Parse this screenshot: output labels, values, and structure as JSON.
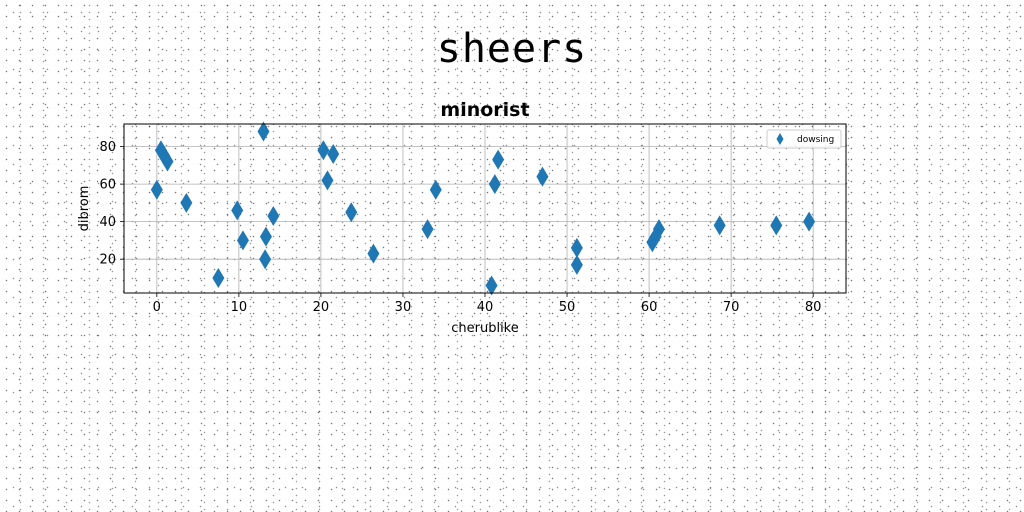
{
  "figure": {
    "suptitle": "sheers"
  },
  "chart_data": {
    "type": "scatter",
    "title": "minorist",
    "xlabel": "cherublike",
    "ylabel": "dibrom",
    "xlim": [
      -4,
      84
    ],
    "ylim": [
      2,
      92
    ],
    "xticks": [
      0,
      10,
      20,
      30,
      40,
      50,
      60,
      70,
      80
    ],
    "yticks": [
      20,
      40,
      60,
      80
    ],
    "grid": true,
    "legend_position": "top-right",
    "color": "#1f77b4",
    "marker": "thin-diamond",
    "series": [
      {
        "name": "dowsing",
        "points": [
          [
            0.0,
            57
          ],
          [
            0.5,
            78
          ],
          [
            0.9,
            75
          ],
          [
            1.3,
            72
          ],
          [
            3.6,
            50
          ],
          [
            7.5,
            10
          ],
          [
            9.8,
            46
          ],
          [
            10.5,
            30
          ],
          [
            13.0,
            88
          ],
          [
            13.2,
            20
          ],
          [
            13.3,
            32
          ],
          [
            14.2,
            43
          ],
          [
            20.3,
            78
          ],
          [
            20.8,
            62
          ],
          [
            21.5,
            76
          ],
          [
            23.7,
            45
          ],
          [
            26.4,
            23
          ],
          [
            33.0,
            36
          ],
          [
            34.0,
            57
          ],
          [
            40.8,
            6
          ],
          [
            41.2,
            60
          ],
          [
            41.6,
            73
          ],
          [
            47.0,
            64
          ],
          [
            51.2,
            26
          ],
          [
            51.2,
            17
          ],
          [
            60.4,
            29
          ],
          [
            60.8,
            32
          ],
          [
            61.2,
            36
          ],
          [
            68.6,
            38
          ],
          [
            75.5,
            38
          ],
          [
            79.5,
            40
          ]
        ]
      }
    ]
  }
}
